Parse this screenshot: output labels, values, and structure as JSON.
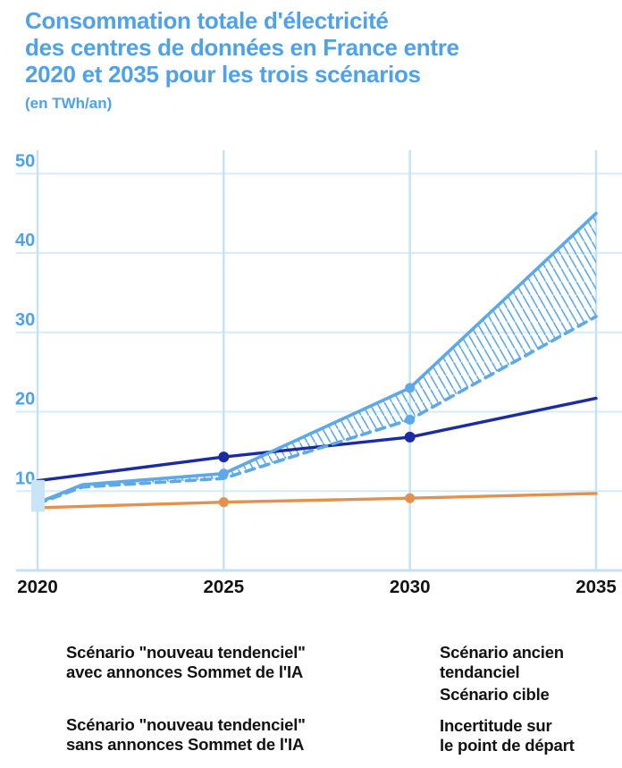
{
  "header": {
    "title": "Consommation totale d'électricité\ndes centres de données en France entre\n2020 et 2035 pour les trois scénarios",
    "subtitle": "(en TWh/an)"
  },
  "colors": {
    "title_blue": "#4da2e9",
    "light_blue_line": "#5ca8e8",
    "navy_line": "#1b2ba3",
    "orange_line": "#e2914e",
    "grid_horizontal": "#d7ecfa",
    "grid_vertical": "#c3e2f7",
    "uncertainty_box": "#c7e5f7",
    "axis_text": "#121212"
  },
  "chart_data": {
    "type": "line",
    "unit": "TWh/an",
    "xlim": [
      2020,
      2035
    ],
    "ylim": [
      0,
      50
    ],
    "x_ticks": [
      2020,
      2025,
      2030,
      2035
    ],
    "y_ticks": [
      10,
      20,
      30,
      40,
      50
    ],
    "grid": true,
    "legend_position": "bottom",
    "series": [
      {
        "key": "avec",
        "name": "Scénario \"nouveau tendenciel\" avec annonces Sommet de l'IA",
        "style": "solid",
        "color_key": "light_blue_line",
        "points": [
          [
            2020,
            8.5
          ],
          [
            2021.2,
            10.8
          ],
          [
            2025,
            12.2
          ],
          [
            2030,
            23
          ],
          [
            2035,
            45
          ]
        ],
        "dots": [
          2025,
          2030
        ]
      },
      {
        "key": "sans",
        "name": "Scénario \"nouveau tendenciel\" sans annonces Sommet de l'IA",
        "style": "dashed",
        "color_key": "light_blue_line",
        "points": [
          [
            2020,
            8.4
          ],
          [
            2021.2,
            10.5
          ],
          [
            2025,
            11.6
          ],
          [
            2030,
            19
          ],
          [
            2035,
            32
          ]
        ],
        "dots": [
          2030
        ]
      },
      {
        "key": "ancien",
        "name": "Scénario ancien tendanciel",
        "style": "solid",
        "color_key": "navy_line",
        "points": [
          [
            2020,
            11.3
          ],
          [
            2025,
            14.3
          ],
          [
            2030,
            16.8
          ],
          [
            2035,
            21.7
          ]
        ],
        "dots": [
          2025,
          2030
        ]
      },
      {
        "key": "cible",
        "name": "Scénario cible",
        "style": "solid",
        "color_key": "orange_line",
        "points": [
          [
            2020,
            7.9
          ],
          [
            2025,
            8.6
          ],
          [
            2030,
            9.1
          ],
          [
            2035,
            9.7
          ]
        ],
        "dots": [
          2025,
          2030
        ]
      }
    ],
    "hatch_between": [
      "avec",
      "sans"
    ],
    "hatch_from_year": 2021.2,
    "uncertainty_band": {
      "x": 2020,
      "from": 7.4,
      "to": 11.4
    }
  },
  "legend": {
    "columns": [
      {
        "items": [
          {
            "swatch": "line-solid-lightblue",
            "label": "Scénario \"nouveau tendenciel\"\navec annonces Sommet de l'IA"
          },
          {
            "swatch": "line-dashed-lightblue",
            "label": "Scénario \"nouveau tendenciel\"\nsans annonces Sommet de l'IA"
          }
        ]
      },
      {
        "items": [
          {
            "swatch": "line-solid-navy",
            "label": "Scénario ancien\ntendanciel"
          },
          {
            "swatch": "line-solid-orange",
            "label": "Scénario cible"
          },
          {
            "swatch": "box-lightblue",
            "label": "Incertitude sur\nle point de départ"
          }
        ]
      }
    ]
  }
}
